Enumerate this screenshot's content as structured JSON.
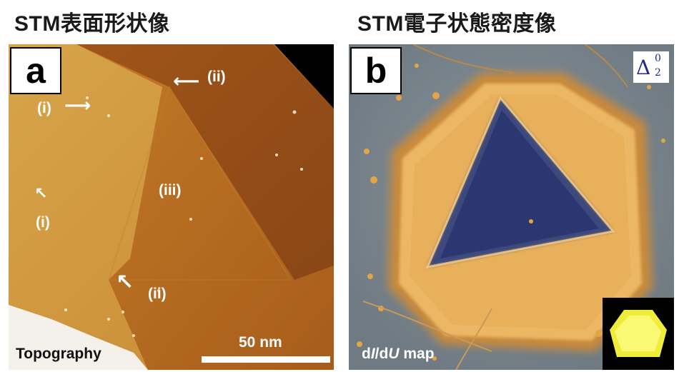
{
  "titles": {
    "left": "STM表面形状像",
    "right": "STM電子状態密度像"
  },
  "panel_a": {
    "label": "a",
    "annotations": {
      "i_top": "(i)",
      "i_left": "(i)",
      "ii_top": "(ii)",
      "ii_bottom": "(ii)",
      "iii": "(iii)"
    },
    "scale_bar": "50 nm",
    "caption": "Topography"
  },
  "panel_b": {
    "label": "b",
    "caption_parts": [
      "d",
      "I",
      "/d",
      "U",
      " map"
    ],
    "delta_symbol": "Δ",
    "delta_super": "0",
    "delta_sub": "2"
  },
  "colors": {
    "topo_light": "#d9a447",
    "topo_mid": "#b66c1f",
    "topo_dark": "#8e4a17",
    "map_bg": "#7f8a92",
    "map_rim": "#f0bc60",
    "map_center": "#2c3773"
  }
}
